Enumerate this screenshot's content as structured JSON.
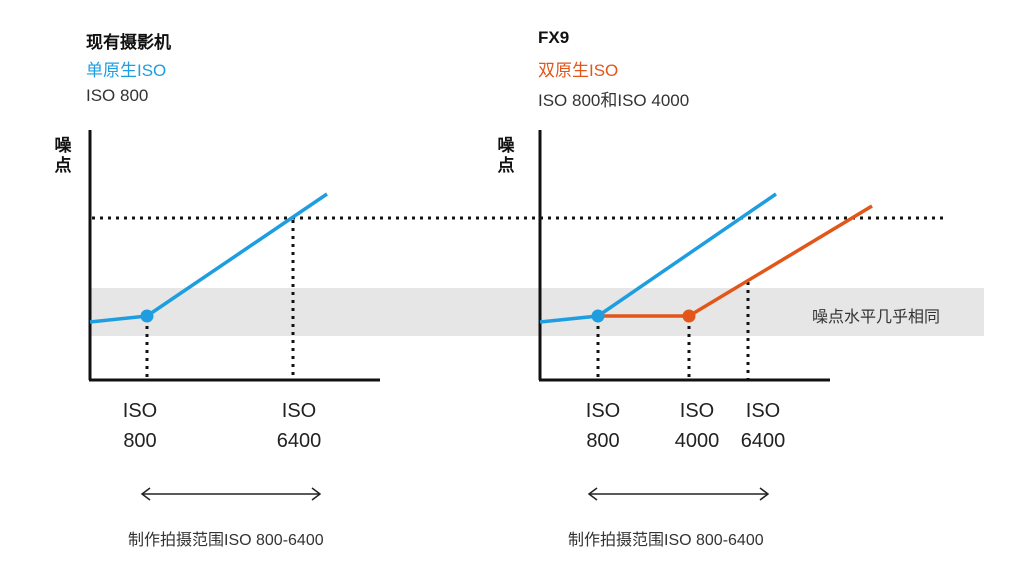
{
  "colors": {
    "blue": "#1e9ee0",
    "orange": "#e2561a",
    "band": "#e6e6e6",
    "axis": "#111111"
  },
  "left_panel": {
    "title": "现有摄影机",
    "subtitle": "单原生ISO",
    "detail": "ISO 800",
    "ylabel": "噪点",
    "ticks": [
      {
        "l1": "ISO",
        "l2": "800"
      },
      {
        "l1": "ISO",
        "l2": "6400"
      }
    ],
    "range_label": "制作拍摄范围ISO 800-6400"
  },
  "right_panel": {
    "title": "FX9",
    "subtitle": "双原生ISO",
    "detail": "ISO 800和ISO 4000",
    "ylabel": "噪点",
    "ticks": [
      {
        "l1": "ISO",
        "l2": "800"
      },
      {
        "l1": "ISO",
        "l2": "4000"
      },
      {
        "l1": "ISO",
        "l2": "6400"
      }
    ],
    "range_label": "制作拍摄范围ISO 800-6400"
  },
  "band_label": "噪点水平几乎相同",
  "chart_data": [
    {
      "type": "line",
      "title": "现有摄影机",
      "ylabel": "噪点",
      "series": [
        {
          "name": "单原生ISO",
          "color": "#1e9ee0",
          "points": [
            {
              "x": "",
              "y": 0.22
            },
            {
              "x": "ISO 800",
              "y": 0.25
            },
            {
              "x": "ISO 6400",
              "y": 0.65
            },
            {
              "x": "",
              "y": 0.75
            }
          ]
        }
      ],
      "marked_iso": [
        "ISO 800",
        "ISO 6400"
      ]
    },
    {
      "type": "line",
      "title": "FX9",
      "ylabel": "噪点",
      "series": [
        {
          "name": "ISO 800",
          "color": "#1e9ee0",
          "points": [
            {
              "x": "",
              "y": 0.22
            },
            {
              "x": "ISO 800",
              "y": 0.25
            },
            {
              "x": "",
              "y": 0.75
            }
          ]
        },
        {
          "name": "ISO 4000",
          "color": "#e2561a",
          "points": [
            {
              "x": "ISO 800",
              "y": 0.25
            },
            {
              "x": "ISO 4000",
              "y": 0.25
            },
            {
              "x": "ISO 6400",
              "y": 0.4
            },
            {
              "x": "",
              "y": 0.72
            }
          ]
        }
      ],
      "marked_iso": [
        "ISO 800",
        "ISO 4000",
        "ISO 6400"
      ]
    }
  ]
}
